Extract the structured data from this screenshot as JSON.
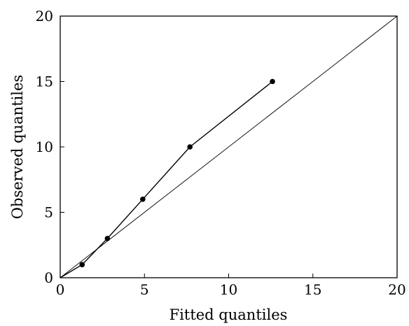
{
  "chart_data": {
    "type": "scatter",
    "xlabel": "Fitted quantiles",
    "ylabel": "Observed quantiles",
    "xlim": [
      0,
      20
    ],
    "ylim": [
      0,
      20
    ],
    "x_ticks": [
      0,
      5,
      10,
      15,
      20
    ],
    "y_ticks": [
      0,
      5,
      10,
      15,
      20
    ],
    "grid": false,
    "reference_line": {
      "from": [
        0,
        0
      ],
      "to": [
        20,
        20
      ]
    },
    "series": [
      {
        "x": [
          0,
          1.3,
          2.8,
          4.9,
          7.7,
          12.6
        ],
        "y": [
          0,
          1,
          3,
          6,
          10,
          15
        ],
        "markers_from_index": 1,
        "connected": true
      }
    ],
    "colors": {
      "line": "#000000",
      "marker": "#000000"
    }
  }
}
